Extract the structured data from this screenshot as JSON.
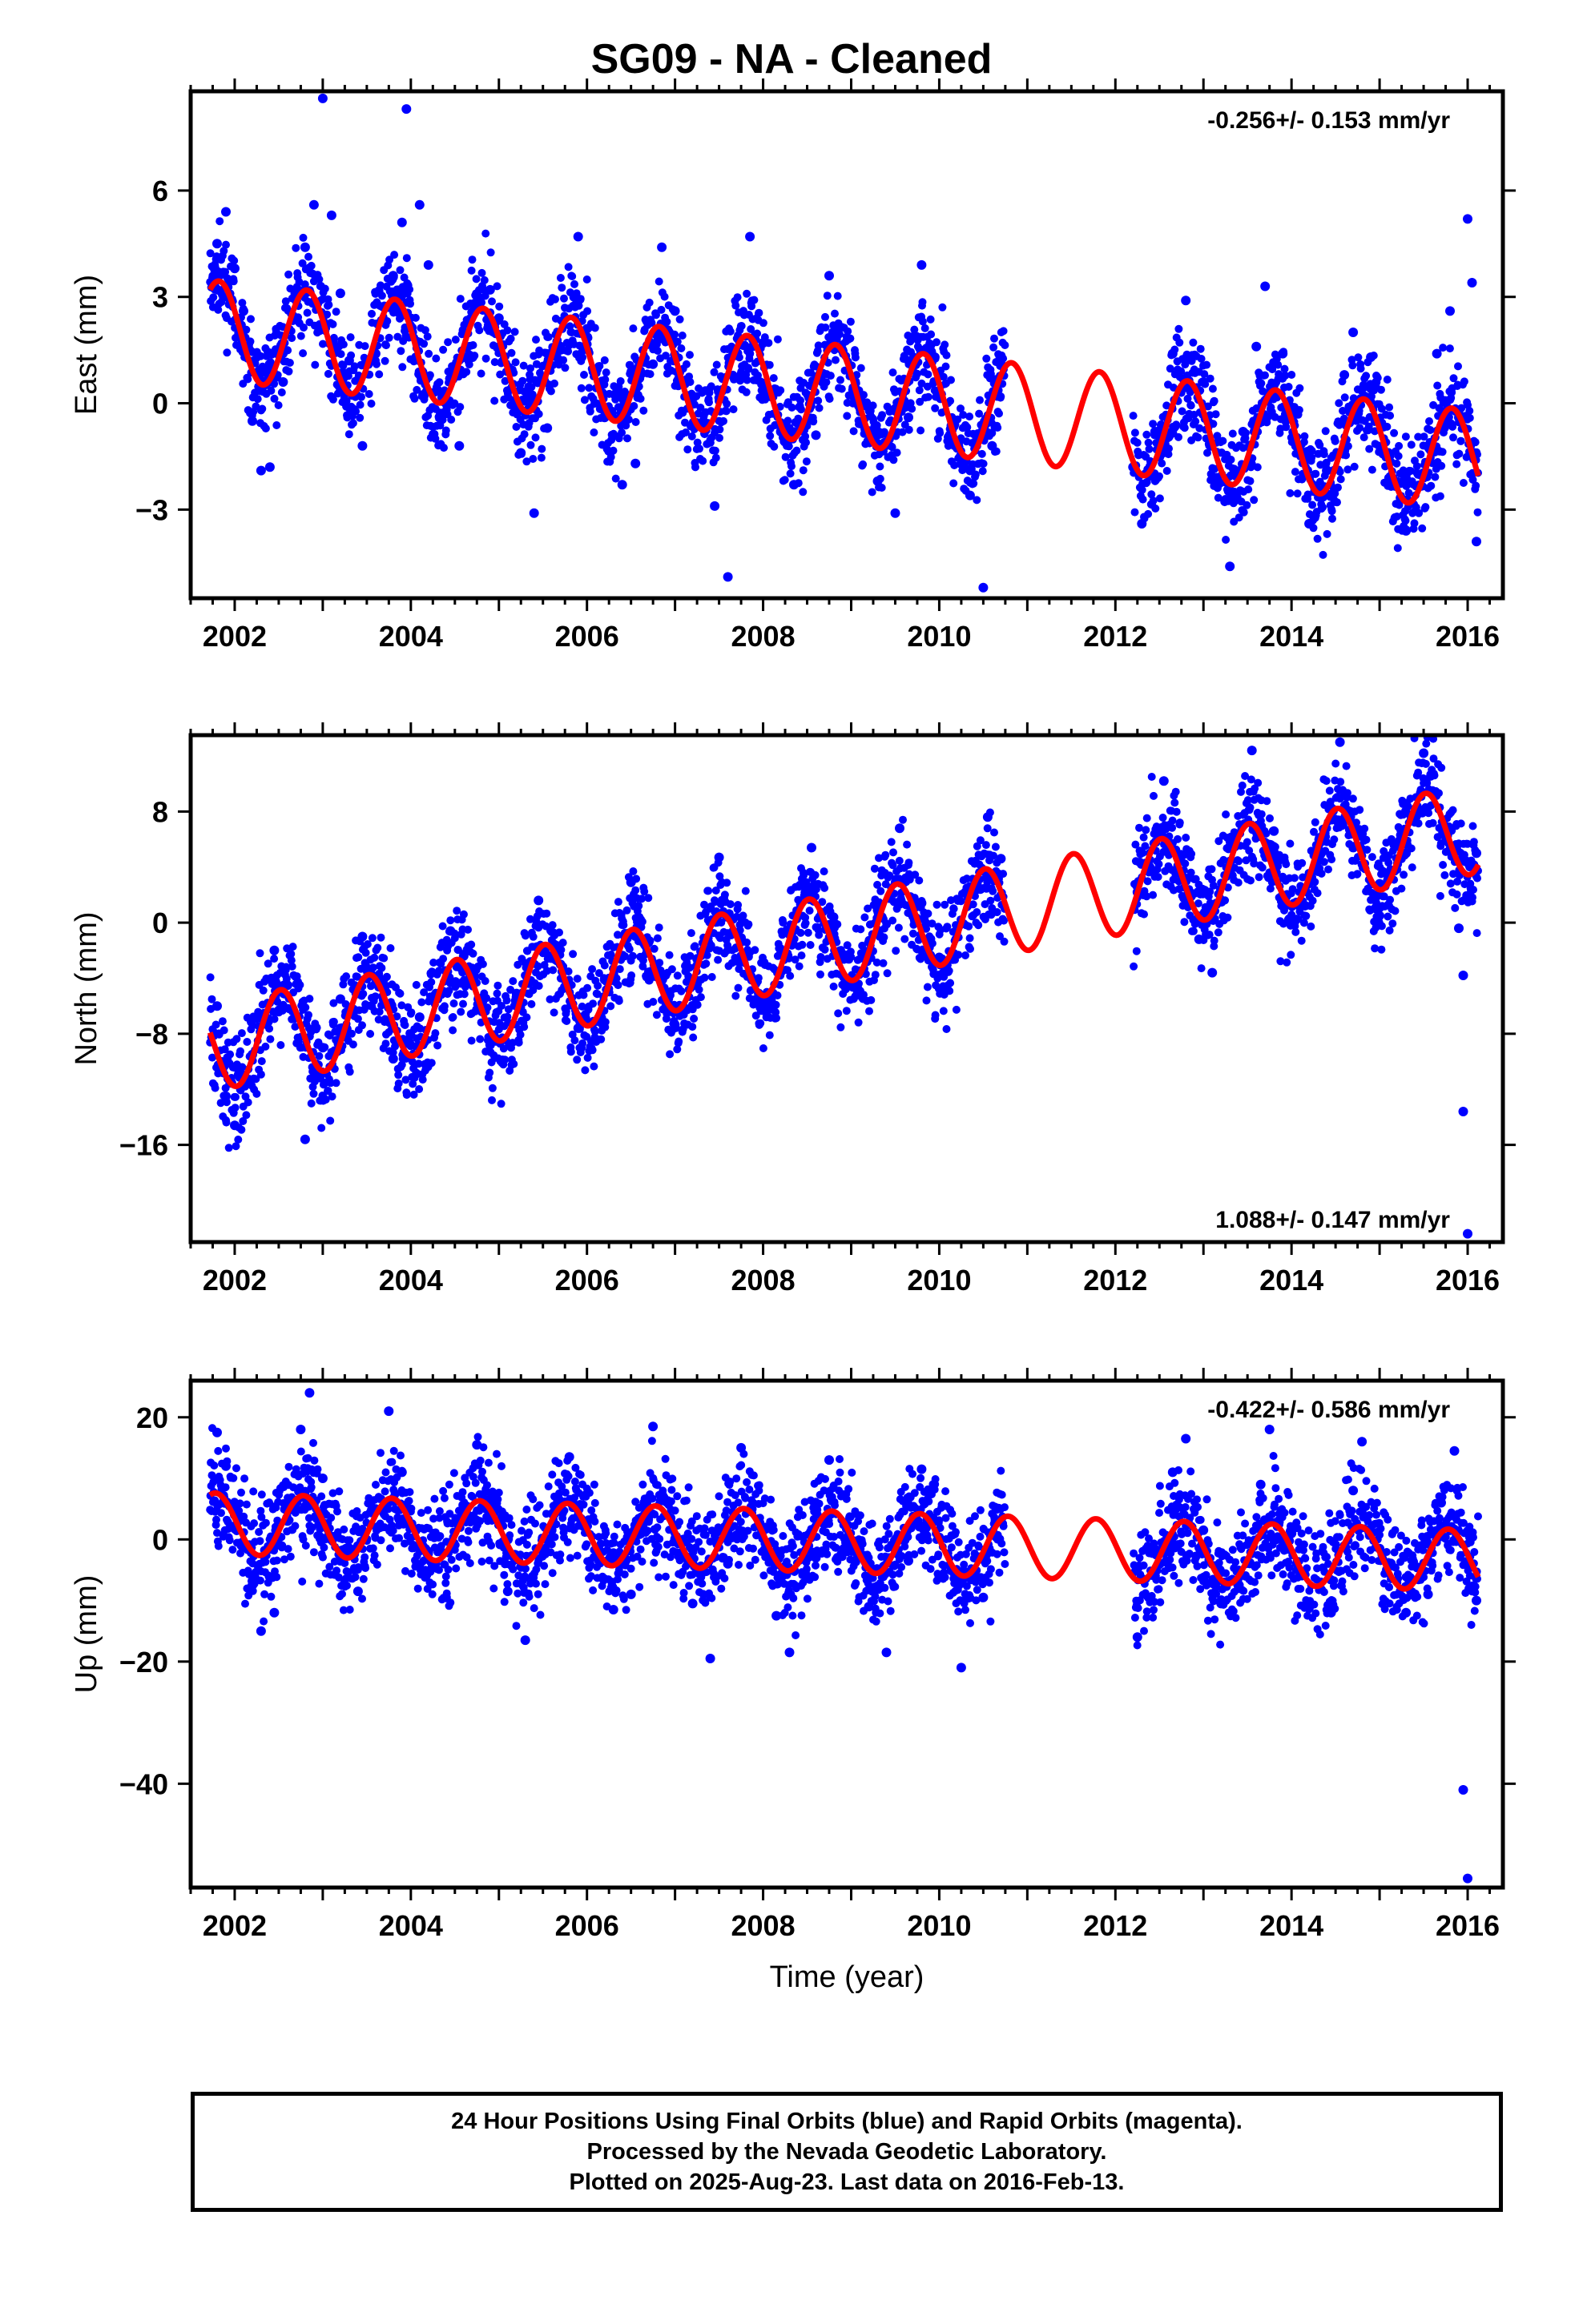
{
  "title": "SG09  - NA - Cleaned",
  "footer": {
    "line1": "24 Hour Positions Using Final Orbits (blue) and Rapid Orbits (magenta).",
    "line2": "Processed by the Nevada Geodetic Laboratory.",
    "line3": "Plotted on 2025-Aug-23. Last data on 2016-Feb-13."
  },
  "colors": {
    "points": "#0000ff",
    "model": "#ff0000",
    "frame": "#000000"
  },
  "chart_data": [
    {
      "type": "scatter",
      "component": "east",
      "ylabel": "East (mm)",
      "xlabel": "",
      "xlim": [
        2001.5,
        2016.4
      ],
      "ylim": [
        -5.5,
        8.8
      ],
      "xticks": [
        "2002",
        "2004",
        "2006",
        "2008",
        "2010",
        "2012",
        "2014",
        "2016"
      ],
      "yticks": [
        "-3",
        "0",
        "3",
        "6"
      ],
      "rate_label": "-0.256+/- 0.153 mm/yr",
      "rate_label_position": "top-right",
      "model": {
        "offset": 2.0,
        "rate": -0.256,
        "seasonal_amplitude": 1.4,
        "seasonal_peak": 0.82
      },
      "series": [
        {
          "values": [
            [
              2001.8,
              4.5
            ],
            [
              2001.9,
              5.4
            ],
            [
              2002.0,
              3.8
            ],
            [
              2002.1,
              2.6
            ],
            [
              2002.2,
              -0.5
            ],
            [
              2002.3,
              -1.9
            ],
            [
              2002.4,
              -1.8
            ],
            [
              2002.55,
              0.6
            ],
            [
              2002.7,
              2.9
            ],
            [
              2002.8,
              4.4
            ],
            [
              2002.9,
              5.6
            ],
            [
              2003.0,
              8.6
            ],
            [
              2003.1,
              5.3
            ],
            [
              2003.2,
              3.1
            ],
            [
              2003.3,
              1.2
            ],
            [
              2003.45,
              -1.2
            ],
            [
              2003.6,
              1.4
            ],
            [
              2003.8,
              3.6
            ],
            [
              2003.9,
              5.1
            ],
            [
              2003.95,
              8.3
            ],
            [
              2004.1,
              5.6
            ],
            [
              2004.2,
              3.9
            ],
            [
              2004.4,
              0.3
            ],
            [
              2004.55,
              -1.2
            ],
            [
              2004.7,
              1.3
            ],
            [
              2004.9,
              3.2
            ],
            [
              2005.0,
              2.4
            ],
            [
              2005.1,
              0.9
            ],
            [
              2005.25,
              -1.4
            ],
            [
              2005.4,
              -3.1
            ],
            [
              2005.55,
              -0.7
            ],
            [
              2005.7,
              1.6
            ],
            [
              2005.9,
              4.7
            ],
            [
              2006.0,
              2.1
            ],
            [
              2006.2,
              -0.4
            ],
            [
              2006.4,
              -2.3
            ],
            [
              2006.55,
              -1.7
            ],
            [
              2006.75,
              1.1
            ],
            [
              2006.85,
              4.4
            ],
            [
              2007.0,
              2.6
            ],
            [
              2007.2,
              0.2
            ],
            [
              2007.45,
              -2.9
            ],
            [
              2007.6,
              -4.9
            ],
            [
              2007.75,
              0.8
            ],
            [
              2007.85,
              4.7
            ],
            [
              2008.0,
              1.7
            ],
            [
              2008.2,
              -0.8
            ],
            [
              2008.35,
              -2.3
            ],
            [
              2008.6,
              -0.9
            ],
            [
              2008.75,
              3.6
            ],
            [
              2008.9,
              1.5
            ],
            [
              2009.1,
              -0.1
            ],
            [
              2009.3,
              -2.2
            ],
            [
              2009.5,
              -3.1
            ],
            [
              2009.65,
              -0.4
            ],
            [
              2009.8,
              3.9
            ],
            [
              2009.95,
              1.3
            ],
            [
              2010.15,
              -1.1
            ],
            [
              2010.35,
              -2.6
            ],
            [
              2010.5,
              -5.2
            ],
            [
              2010.6,
              -1.2
            ],
            [
              2010.7,
              1.1
            ],
            [
              2012.2,
              -1.8
            ],
            [
              2012.3,
              -3.4
            ],
            [
              2012.45,
              -0.8
            ],
            [
              2012.65,
              1.4
            ],
            [
              2012.8,
              2.9
            ],
            [
              2013.0,
              0.6
            ],
            [
              2013.15,
              -2.1
            ],
            [
              2013.3,
              -4.6
            ],
            [
              2013.45,
              -0.8
            ],
            [
              2013.6,
              1.6
            ],
            [
              2013.7,
              3.3
            ],
            [
              2013.9,
              1.4
            ],
            [
              2014.05,
              -1.2
            ],
            [
              2014.2,
              -3.4
            ],
            [
              2014.4,
              -1.9
            ],
            [
              2014.6,
              0.8
            ],
            [
              2014.7,
              2.0
            ],
            [
              2014.9,
              1.3
            ],
            [
              2015.1,
              -1.4
            ],
            [
              2015.3,
              -3.6
            ],
            [
              2015.5,
              -2.1
            ],
            [
              2015.65,
              1.4
            ],
            [
              2015.8,
              2.6
            ],
            [
              2015.9,
              -0.4
            ],
            [
              2016.0,
              5.2
            ],
            [
              2016.05,
              3.4
            ],
            [
              2016.1,
              -3.9
            ]
          ]
        }
      ]
    },
    {
      "type": "scatter",
      "component": "north",
      "ylabel": "North (mm)",
      "xlabel": "",
      "xlim": [
        2001.5,
        2016.4
      ],
      "ylim": [
        -23,
        13.5
      ],
      "xticks": [
        "2002",
        "2004",
        "2006",
        "2008",
        "2010",
        "2012",
        "2014",
        "2016"
      ],
      "yticks": [
        "-16",
        "-8",
        "0",
        "8"
      ],
      "rate_label": "1.088+/- 0.147 mm/yr",
      "rate_label_position": "bottom-right",
      "model": {
        "offset": -8.6,
        "rate": 1.088,
        "seasonal_amplitude": 3.2,
        "seasonal_peak": 0.52
      },
      "series": [
        {
          "values": [
            [
              2001.8,
              -6.0
            ],
            [
              2001.9,
              -12.5
            ],
            [
              2002.0,
              -14.6
            ],
            [
              2002.2,
              -9.5
            ],
            [
              2002.45,
              -2.0
            ],
            [
              2002.6,
              -4.5
            ],
            [
              2002.8,
              -15.6
            ],
            [
              2003.0,
              -9.0
            ],
            [
              2003.2,
              -5.5
            ],
            [
              2003.45,
              -1.0
            ],
            [
              2003.6,
              -4.4
            ],
            [
              2003.8,
              -9.8
            ],
            [
              2004.1,
              -6.8
            ],
            [
              2004.45,
              -0.6
            ],
            [
              2004.6,
              -2.4
            ],
            [
              2004.9,
              -8.8
            ],
            [
              2005.2,
              -5.1
            ],
            [
              2005.45,
              1.6
            ],
            [
              2005.7,
              -3.0
            ],
            [
              2005.9,
              -7.6
            ],
            [
              2006.2,
              -4.1
            ],
            [
              2006.5,
              2.9
            ],
            [
              2006.7,
              -1.4
            ],
            [
              2006.9,
              -6.0
            ],
            [
              2007.25,
              -2.6
            ],
            [
              2007.5,
              4.7
            ],
            [
              2007.75,
              -1.1
            ],
            [
              2007.95,
              -5.1
            ],
            [
              2008.3,
              -0.6
            ],
            [
              2008.55,
              5.4
            ],
            [
              2008.8,
              0.4
            ],
            [
              2008.95,
              -4.5
            ],
            [
              2009.3,
              0.9
            ],
            [
              2009.55,
              6.8
            ],
            [
              2009.8,
              1.4
            ],
            [
              2010.0,
              -2.5
            ],
            [
              2010.3,
              2.2
            ],
            [
              2010.55,
              7.6
            ],
            [
              2010.7,
              4.6
            ],
            [
              2012.25,
              2.2
            ],
            [
              2012.55,
              10.2
            ],
            [
              2012.8,
              3.0
            ],
            [
              2012.95,
              -1.2
            ],
            [
              2013.1,
              -3.6
            ],
            [
              2013.3,
              4.4
            ],
            [
              2013.55,
              12.4
            ],
            [
              2013.8,
              6.6
            ],
            [
              2013.95,
              2.0
            ],
            [
              2014.3,
              5.4
            ],
            [
              2014.55,
              13.0
            ],
            [
              2014.8,
              6.4
            ],
            [
              2015.0,
              2.8
            ],
            [
              2015.3,
              5.0
            ],
            [
              2015.5,
              12.2
            ],
            [
              2015.75,
              6.2
            ],
            [
              2015.9,
              -0.4
            ],
            [
              2015.95,
              -3.8
            ],
            [
              2015.95,
              -13.6
            ],
            [
              2016.0,
              -22.4
            ],
            [
              2016.1,
              5.0
            ]
          ]
        }
      ]
    },
    {
      "type": "scatter",
      "component": "up",
      "ylabel": "Up (mm)",
      "xlabel": "Time (year)",
      "xlim": [
        2001.5,
        2016.4
      ],
      "ylim": [
        -57,
        26
      ],
      "xticks": [
        "2002",
        "2004",
        "2006",
        "2008",
        "2010",
        "2012",
        "2014",
        "2016"
      ],
      "yticks": [
        "-40",
        "-20",
        "0",
        "20"
      ],
      "rate_label": "-0.422+/- 0.586 mm/yr",
      "rate_label_position": "top-right",
      "model": {
        "offset": 2.5,
        "rate": -0.422,
        "seasonal_amplitude": 5.0,
        "seasonal_peak": 0.78
      },
      "series": [
        {
          "values": [
            [
              2001.8,
              17.5
            ],
            [
              2001.9,
              12.0
            ],
            [
              2002.0,
              4.0
            ],
            [
              2002.2,
              -7.5
            ],
            [
              2002.3,
              -15.0
            ],
            [
              2002.45,
              -12.0
            ],
            [
              2002.6,
              3.0
            ],
            [
              2002.75,
              18.0
            ],
            [
              2002.85,
              24.0
            ],
            [
              2003.0,
              10.0
            ],
            [
              2003.2,
              -3.5
            ],
            [
              2003.4,
              -8.5
            ],
            [
              2003.6,
              5.0
            ],
            [
              2003.75,
              21.0
            ],
            [
              2003.9,
              11.0
            ],
            [
              2004.2,
              -2.0
            ],
            [
              2004.4,
              -9.5
            ],
            [
              2004.6,
              4.0
            ],
            [
              2004.75,
              15.5
            ],
            [
              2004.95,
              4.5
            ],
            [
              2005.1,
              -8.5
            ],
            [
              2005.3,
              -16.5
            ],
            [
              2005.6,
              1.5
            ],
            [
              2005.8,
              13.5
            ],
            [
              2006.0,
              3.0
            ],
            [
              2006.3,
              -11.5
            ],
            [
              2006.5,
              -9.0
            ],
            [
              2006.65,
              6.0
            ],
            [
              2006.75,
              18.5
            ],
            [
              2006.95,
              3.5
            ],
            [
              2007.2,
              -10.5
            ],
            [
              2007.4,
              -19.5
            ],
            [
              2007.6,
              -4.0
            ],
            [
              2007.75,
              15.0
            ],
            [
              2007.95,
              2.5
            ],
            [
              2008.15,
              -12.5
            ],
            [
              2008.3,
              -18.5
            ],
            [
              2008.6,
              -3.0
            ],
            [
              2008.75,
              13.0
            ],
            [
              2008.95,
              -1.5
            ],
            [
              2009.2,
              -11.0
            ],
            [
              2009.4,
              -18.5
            ],
            [
              2009.65,
              -3.5
            ],
            [
              2009.8,
              11.5
            ],
            [
              2010.0,
              -6.0
            ],
            [
              2010.25,
              -21.0
            ],
            [
              2010.5,
              -9.5
            ],
            [
              2010.65,
              5.0
            ],
            [
              2012.25,
              -16.0
            ],
            [
              2012.45,
              -6.0
            ],
            [
              2012.65,
              11.0
            ],
            [
              2012.8,
              16.5
            ],
            [
              2013.0,
              1.5
            ],
            [
              2013.2,
              -10.5
            ],
            [
              2013.4,
              -8.0
            ],
            [
              2013.65,
              9.0
            ],
            [
              2013.75,
              18.0
            ],
            [
              2014.0,
              1.0
            ],
            [
              2014.2,
              -10.5
            ],
            [
              2014.45,
              -12.0
            ],
            [
              2014.7,
              8.0
            ],
            [
              2014.8,
              16.0
            ],
            [
              2015.0,
              -1.5
            ],
            [
              2015.3,
              -12.0
            ],
            [
              2015.55,
              -9.0
            ],
            [
              2015.7,
              6.0
            ],
            [
              2015.85,
              14.5
            ],
            [
              2015.95,
              -41.0
            ],
            [
              2016.0,
              -55.5
            ],
            [
              2016.1,
              -10.0
            ]
          ]
        }
      ]
    }
  ]
}
